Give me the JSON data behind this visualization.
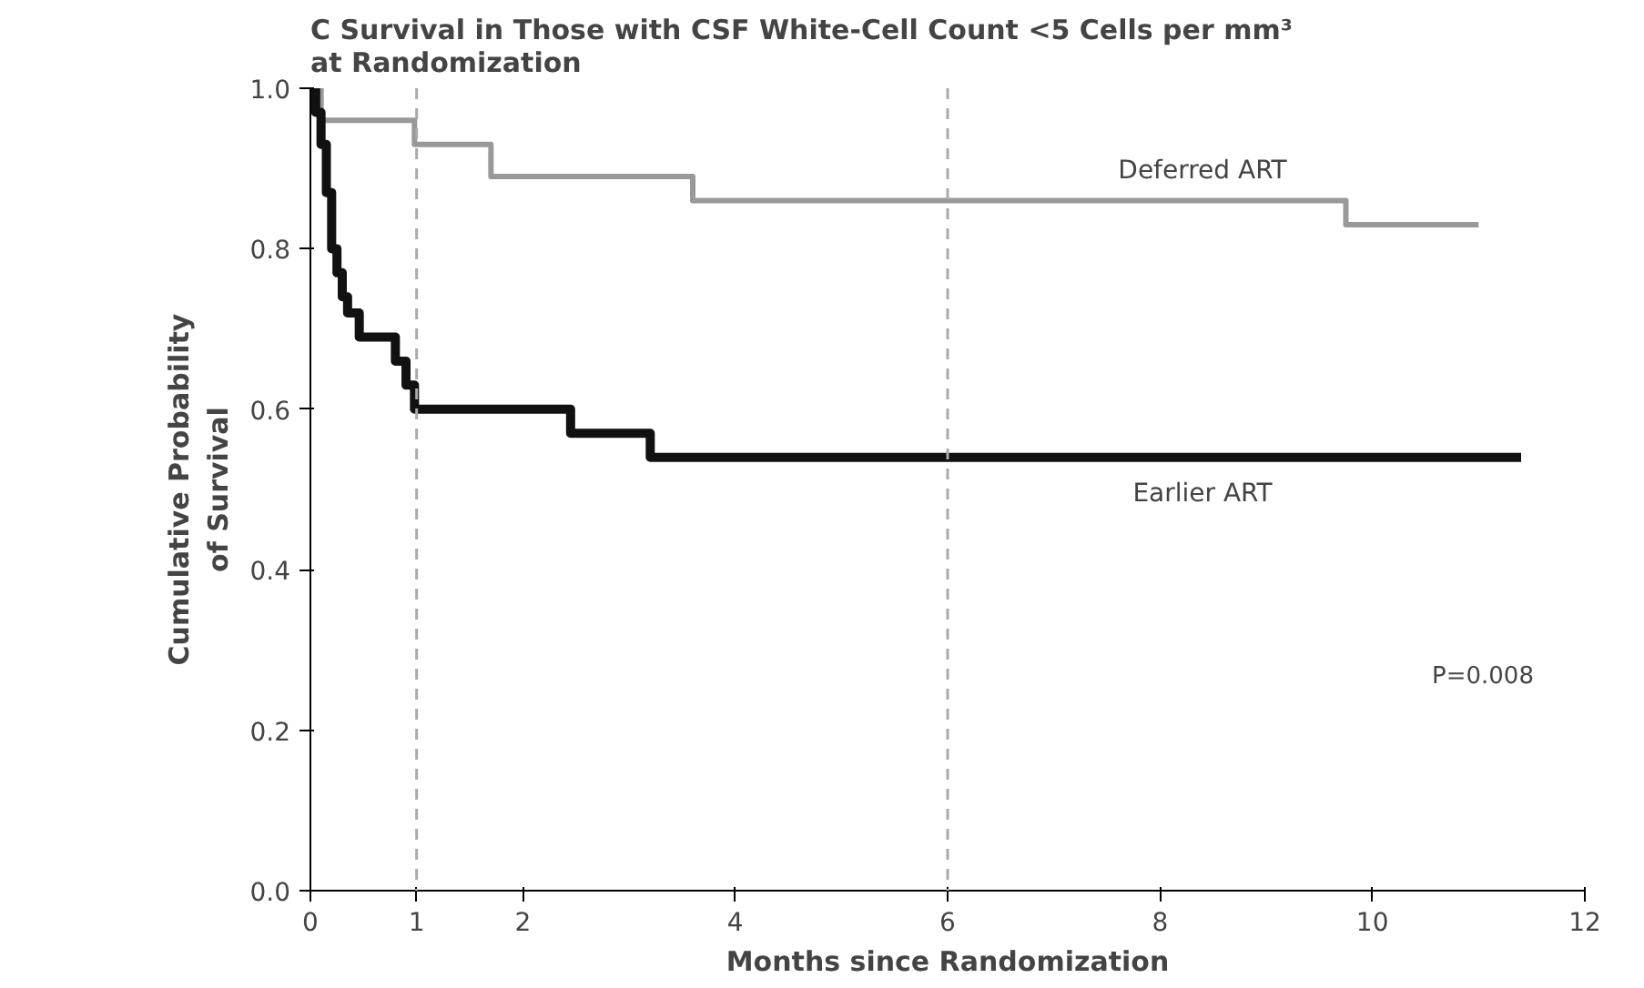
{
  "chart_data": {
    "type": "step",
    "title": "C  Survival in Those with CSF White-Cell Count <5 Cells per mm³\n     at Randomization",
    "xlabel": "Months since Randomization",
    "ylabel": "Cumulative Probability\nof Survival",
    "series": [
      {
        "name": "Deferred ART",
        "color": "#999999",
        "x": [
          0,
          0.1,
          0.98,
          1.7,
          3.6,
          9.75,
          11.0
        ],
        "values": [
          1.0,
          0.96,
          0.93,
          0.89,
          0.86,
          0.83,
          0.83
        ]
      },
      {
        "name": "Earlier ART",
        "color": "#111111",
        "x": [
          0,
          0.05,
          0.1,
          0.15,
          0.2,
          0.25,
          0.3,
          0.35,
          0.46,
          0.8,
          0.9,
          0.98,
          2.45,
          3.2,
          11.4
        ],
        "values": [
          1.0,
          0.97,
          0.93,
          0.87,
          0.8,
          0.77,
          0.74,
          0.72,
          0.69,
          0.66,
          0.63,
          0.6,
          0.57,
          0.54,
          0.54
        ]
      }
    ],
    "ref_lines": [
      {
        "axis": "x",
        "value": 1,
        "line_style": "dashed",
        "color": "#aaaaaa"
      },
      {
        "axis": "x",
        "value": 6,
        "line_style": "dashed",
        "color": "#aaaaaa"
      }
    ],
    "annotations": [
      "P=0.008"
    ],
    "xlim": [
      0,
      12
    ],
    "ylim": [
      0,
      1.0
    ],
    "xticks": [
      0,
      1,
      2,
      4,
      6,
      8,
      10,
      12
    ],
    "yticks": [
      {
        "value": 0,
        "label": "0.0"
      },
      {
        "value": 0.2,
        "label": "0.2"
      },
      {
        "value": 0.4,
        "label": "0.4"
      },
      {
        "value": 0.6,
        "label": "0.6"
      },
      {
        "value": 0.8,
        "label": "0.8"
      },
      {
        "value": 1.0,
        "label": "1.0"
      }
    ],
    "grid": false
  }
}
